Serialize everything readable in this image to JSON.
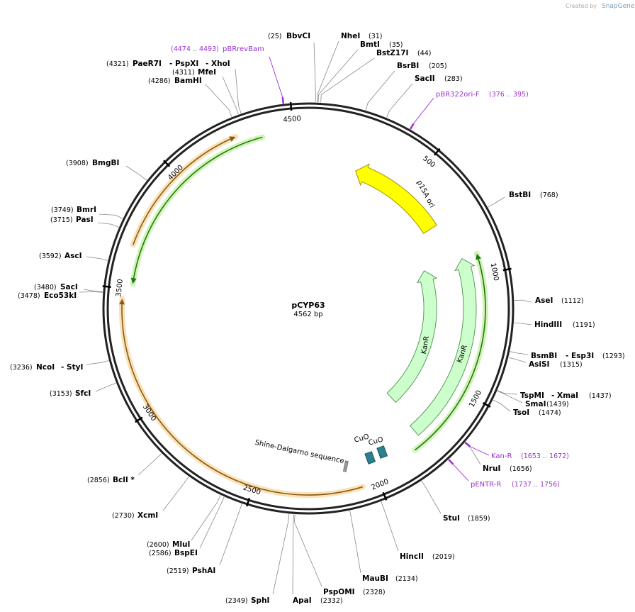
{
  "header": {
    "created_by": "Created by",
    "brand": "SnapGene"
  },
  "map": {
    "name": "pCYP63",
    "size": "4562 bp",
    "ticks": [
      500,
      1000,
      1500,
      2000,
      2500,
      3000,
      3500,
      4000,
      4500
    ]
  },
  "features": [
    {
      "label": "p15A ori"
    },
    {
      "label": "KanR"
    },
    {
      "label": "KanR"
    },
    {
      "label": "CuO"
    },
    {
      "label": "CuO"
    },
    {
      "label": "Shine-Dalgarno sequence"
    }
  ],
  "sites": [
    {
      "names": [
        "BbvCI"
      ],
      "position": "(25)"
    },
    {
      "names": [
        "NheI"
      ],
      "position": "(31)"
    },
    {
      "names": [
        "BmtI"
      ],
      "position": "(35)"
    },
    {
      "names": [
        "BstZ17I"
      ],
      "position": "(44)"
    },
    {
      "names": [
        "BsrBI"
      ],
      "position": "(205)"
    },
    {
      "names": [
        "SacII"
      ],
      "position": "(283)"
    },
    {
      "names": [
        "BstBI"
      ],
      "position": "(768)"
    },
    {
      "names": [
        "AseI"
      ],
      "position": "(1112)"
    },
    {
      "names": [
        "HindIII"
      ],
      "position": "(1191)"
    },
    {
      "names": [
        "BsmBI",
        "- Esp3I"
      ],
      "position": "(1293)"
    },
    {
      "names": [
        "AsiSI"
      ],
      "position": "(1315)"
    },
    {
      "names": [
        "TspMI",
        "- XmaI"
      ],
      "position": "(1437)"
    },
    {
      "names": [
        "SmaI"
      ],
      "position": "(1439)"
    },
    {
      "names": [
        "TsoI"
      ],
      "position": "(1474)"
    },
    {
      "names": [
        "NruI"
      ],
      "position": "(1656)"
    },
    {
      "names": [
        "StuI"
      ],
      "position": "(1859)"
    },
    {
      "names": [
        "HincII"
      ],
      "position": "(2019)"
    },
    {
      "names": [
        "MauBI"
      ],
      "position": "(2134)"
    },
    {
      "names": [
        "PspOMI"
      ],
      "position": "(2328)"
    },
    {
      "names": [
        "ApaI"
      ],
      "position": "(2332)"
    },
    {
      "names": [
        "SphI"
      ],
      "position": "(2349)"
    },
    {
      "names": [
        "PshAI"
      ],
      "position": "(2519)"
    },
    {
      "names": [
        "MluI"
      ],
      "position": "(2600)"
    },
    {
      "names": [
        "BspEI"
      ],
      "position": "(2586)"
    },
    {
      "names": [
        "XcmI"
      ],
      "position": "(2730)"
    },
    {
      "names": [
        "BclI *"
      ],
      "position": "(2856)"
    },
    {
      "names": [
        "SfcI"
      ],
      "position": "(3153)"
    },
    {
      "names": [
        "NcoI",
        "- StyI"
      ],
      "position": "(3236)"
    },
    {
      "names": [
        "SacI"
      ],
      "position": "(3480)"
    },
    {
      "names": [
        "Eco53kI"
      ],
      "position": "(3478)"
    },
    {
      "names": [
        "AscI"
      ],
      "position": "(3592)"
    },
    {
      "names": [
        "BmrI"
      ],
      "position": "(3749)"
    },
    {
      "names": [
        "PasI"
      ],
      "position": "(3715)"
    },
    {
      "names": [
        "BmgBI"
      ],
      "position": "(3908)"
    },
    {
      "names": [
        "BamHI"
      ],
      "position": "(4286)"
    },
    {
      "names": [
        "MfeI"
      ],
      "position": "(4311)"
    },
    {
      "names": [
        "PaeR7I",
        "- PspXI",
        "- XhoI"
      ],
      "position": "(4321)"
    }
  ],
  "primers": [
    {
      "name": "pBRrevBam",
      "position": "(4474 .. 4493)"
    },
    {
      "name": "pBR322ori-F",
      "position": "(376 .. 395)"
    },
    {
      "name": "Kan-R",
      "position": "(1653 .. 1672)"
    },
    {
      "name": "pENTR-R",
      "position": "(1737 .. 1756)"
    }
  ]
}
